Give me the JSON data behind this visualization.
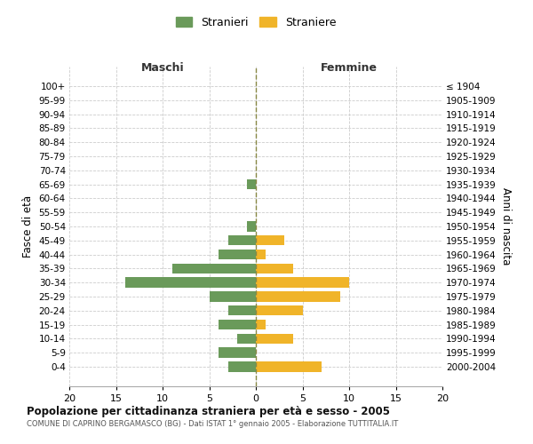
{
  "age_groups": [
    "100+",
    "95-99",
    "90-94",
    "85-89",
    "80-84",
    "75-79",
    "70-74",
    "65-69",
    "60-64",
    "55-59",
    "50-54",
    "45-49",
    "40-44",
    "35-39",
    "30-34",
    "25-29",
    "20-24",
    "15-19",
    "10-14",
    "5-9",
    "0-4"
  ],
  "birth_years": [
    "≤ 1904",
    "1905-1909",
    "1910-1914",
    "1915-1919",
    "1920-1924",
    "1925-1929",
    "1930-1934",
    "1935-1939",
    "1940-1944",
    "1945-1949",
    "1950-1954",
    "1955-1959",
    "1960-1964",
    "1965-1969",
    "1970-1974",
    "1975-1979",
    "1980-1984",
    "1985-1989",
    "1990-1994",
    "1995-1999",
    "2000-2004"
  ],
  "maschi": [
    0,
    0,
    0,
    0,
    0,
    0,
    0,
    1,
    0,
    0,
    1,
    3,
    4,
    9,
    14,
    5,
    3,
    4,
    2,
    4,
    3
  ],
  "femmine": [
    0,
    0,
    0,
    0,
    0,
    0,
    0,
    0,
    0,
    0,
    0,
    3,
    1,
    4,
    10,
    9,
    5,
    1,
    4,
    0,
    7
  ],
  "color_maschi": "#6a9a5a",
  "color_femmine": "#f0b429",
  "title": "Popolazione per cittadinanza straniera per età e sesso - 2005",
  "subtitle": "COMUNE DI CAPRINO BERGAMASCO (BG) - Dati ISTAT 1° gennaio 2005 - Elaborazione TUTTITALIA.IT",
  "ylabel_left": "Fasce di età",
  "ylabel_right": "Anni di nascita",
  "xlabel_left": "Maschi",
  "xlabel_right": "Femmine",
  "legend_stranieri": "Stranieri",
  "legend_straniere": "Straniere",
  "xlim": 20,
  "background_color": "#ffffff",
  "grid_color": "#cccccc"
}
